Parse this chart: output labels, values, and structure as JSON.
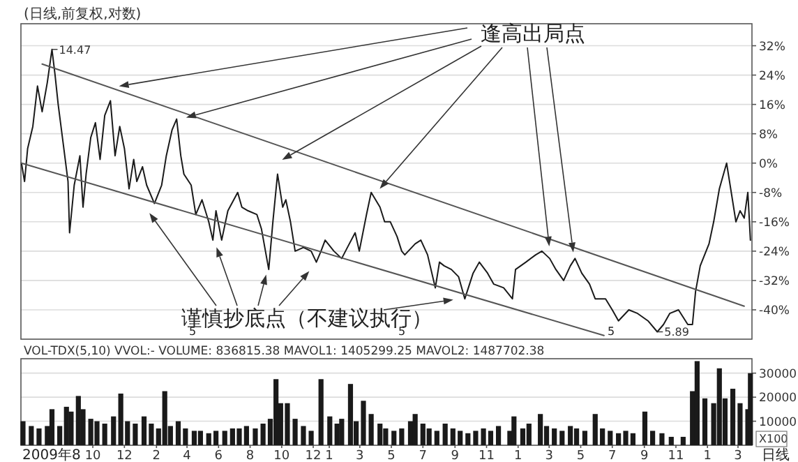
{
  "chart_data": [
    {
      "type": "line",
      "title": "(日线,前复权,对数)",
      "x": [
        "2009-05-16",
        "2009-05-22",
        "2009-05-28",
        "2009-06-07",
        "2009-06-16",
        "2009-06-25",
        "2009-07-05",
        "2009-07-14",
        "2009-07-20",
        "2009-07-26",
        "2009-08-05",
        "2009-08-14",
        "2009-08-17",
        "2009-08-26",
        "2009-09-06",
        "2009-09-12",
        "2009-09-18",
        "2009-09-27",
        "2009-10-06",
        "2009-10-15",
        "2009-10-24",
        "2009-11-04",
        "2009-11-13",
        "2009-11-22",
        "2009-12-01",
        "2009-12-10",
        "2009-12-19",
        "2009-12-25",
        "2010-01-05",
        "2010-01-13",
        "2010-01-28",
        "2010-02-11",
        "2010-02-20",
        "2010-03-03",
        "2010-03-12",
        "2010-03-20",
        "2010-03-26",
        "2010-04-09",
        "2010-04-18",
        "2010-04-30",
        "2010-05-13",
        "2010-05-21",
        "2010-05-27",
        "2010-06-07",
        "2010-06-19",
        "2010-07-08",
        "2010-07-16",
        "2010-07-28",
        "2010-08-14",
        "2010-08-23",
        "2010-09-06",
        "2010-09-14",
        "2010-09-23",
        "2010-10-03",
        "2010-10-09",
        "2010-10-18",
        "2010-10-27",
        "2010-11-12",
        "2010-11-27",
        "2010-12-07",
        "2010-12-16",
        "2010-12-24",
        "2011-01-10",
        "2011-01-25",
        "2011-02-05",
        "2011-02-20",
        "2011-02-28",
        "2011-03-14",
        "2011-03-23",
        "2011-04-09",
        "2011-04-18",
        "2011-04-29",
        "2011-05-12",
        "2011-05-21",
        "2011-05-27",
        "2011-06-16",
        "2011-06-27",
        "2011-07-10",
        "2011-07-25",
        "2011-08-02",
        "2011-08-11",
        "2011-08-25",
        "2011-09-08",
        "2011-09-20",
        "2011-10-06",
        "2011-10-18",
        "2011-11-03",
        "2011-11-15",
        "2011-12-04",
        "2011-12-21",
        "2011-12-27",
        "2012-01-16",
        "2012-02-04",
        "2012-02-16",
        "2012-03-02",
        "2012-03-14",
        "2012-03-29",
        "2012-04-11",
        "2012-04-20",
        "2012-05-03",
        "2012-05-18",
        "2012-05-29",
        "2012-06-18",
        "2012-07-01",
        "2012-07-13",
        "2012-08-02",
        "2012-08-19",
        "2012-09-08",
        "2012-09-26",
        "2012-10-08",
        "2012-10-20",
        "2012-11-06",
        "2012-11-24",
        "2012-12-03",
        "2012-12-09",
        "2012-12-18",
        "2013-01-04",
        "2013-01-13",
        "2013-01-24",
        "2013-02-07",
        "2013-02-16",
        "2013-02-25",
        "2013-03-05",
        "2013-03-13",
        "2013-03-20",
        "2013-03-22",
        "2013-03-25"
      ],
      "series": [
        {
          "color": "#1a1a1a",
          "values": [
            0,
            -5,
            4,
            10,
            21,
            14,
            22,
            31,
            24,
            16,
            5,
            -5,
            -19,
            -6,
            2,
            -12,
            -3,
            7,
            11,
            1,
            13,
            17,
            2,
            10,
            4,
            -7,
            1,
            -5,
            -1,
            -6,
            -11,
            -6,
            2,
            9,
            12,
            2,
            -3,
            -6,
            -14,
            -10,
            -16,
            -21,
            -13,
            -21,
            -13,
            -8,
            -12,
            -13,
            -14,
            -18,
            -29,
            -16,
            -3,
            -12,
            -10,
            -16,
            -24,
            -23,
            -24,
            -27,
            -24,
            -21,
            -24,
            -26,
            -23,
            -19,
            -24,
            -14,
            -8,
            -12,
            -16,
            -16,
            -20,
            -24,
            -25,
            -22,
            -21,
            -25,
            -34,
            -27,
            -28,
            -29,
            -31,
            -37,
            -30,
            -27,
            -30,
            -33,
            -34,
            -37,
            -29,
            -27,
            -25,
            -24,
            -26,
            -29,
            -32,
            -28,
            -26,
            -30,
            -33,
            -37,
            -37,
            -40,
            -43,
            -40,
            -41,
            -43,
            -46,
            -44,
            -41,
            -40,
            -44,
            -44,
            -35,
            -28,
            -22,
            -16,
            -7,
            0,
            -8,
            -16,
            -13,
            -15,
            -8,
            -13,
            -21
          ]
        },
        {
          "type": "line",
          "color": "#555555",
          "x": [
            "2009-06-25",
            "2013-03-13"
          ],
          "values": [
            27,
            -39
          ]
        },
        {
          "type": "line",
          "color": "#555555",
          "x": [
            "2009-05-16",
            "2012-06-15"
          ],
          "values": [
            0,
            -47
          ]
        }
      ],
      "xlim": [
        "2009-05-15",
        "2013-03-28"
      ],
      "ylim": [
        -48,
        38
      ],
      "yticks": [
        {
          "value": 32,
          "label": "32%"
        },
        {
          "value": 24,
          "label": "24%"
        },
        {
          "value": 16,
          "label": "16%"
        },
        {
          "value": 8,
          "label": "8%"
        },
        {
          "value": 0,
          "label": "0%"
        },
        {
          "value": -8,
          "label": "-8%"
        },
        {
          "value": -16,
          "label": "-16%"
        },
        {
          "value": -24,
          "label": "-24%"
        },
        {
          "value": -32,
          "label": "-32%"
        },
        {
          "value": -40,
          "label": "-40%"
        }
      ],
      "grid": "y",
      "tick_labels": "y",
      "annotations": [
        {
          "text": "14.47",
          "x": "2009-07-14",
          "y": 31
        },
        {
          "text": "5.89",
          "x": "2012-09-26",
          "y": -46
        },
        {
          "text": "逢高出局点",
          "x": "2009-11-22",
          "y": 21
        },
        "谨慎抄底点（不建议执行）",
        "5",
        "5",
        "5"
      ]
    },
    {
      "type": "bar",
      "title": "VOL-TDX(5,10) VVOL:- VOLUME: 836815.38 MAVOL1: 1405299.25 MAVOL2: 1487702.38",
      "ylabel": "X100",
      "color": "#1a1a1a",
      "x": [
        "2009-05-19",
        "2009-06-04",
        "2009-06-19",
        "2009-07-05",
        "2009-07-14",
        "2009-07-29",
        "2009-08-11",
        "2009-08-20",
        "2009-09-03",
        "2009-09-12",
        "2009-09-27",
        "2009-10-09",
        "2009-10-24",
        "2009-11-10",
        "2009-11-24",
        "2009-12-07",
        "2009-12-22",
        "2010-01-08",
        "2010-01-22",
        "2010-02-05",
        "2010-02-17",
        "2010-02-28",
        "2010-03-15",
        "2010-03-29",
        "2010-04-15",
        "2010-04-27",
        "2010-05-13",
        "2010-05-27",
        "2010-06-13",
        "2010-06-28",
        "2010-07-11",
        "2010-07-25",
        "2010-08-11",
        "2010-08-26",
        "2010-09-09",
        "2010-09-20",
        "2010-09-29",
        "2010-10-12",
        "2010-10-27",
        "2010-11-12",
        "2010-11-27",
        "2010-12-16",
        "2011-01-02",
        "2011-01-16",
        "2011-01-25",
        "2011-02-11",
        "2011-02-22",
        "2011-03-08",
        "2011-03-23",
        "2011-04-09",
        "2011-04-20",
        "2011-05-06",
        "2011-05-21",
        "2011-06-07",
        "2011-06-16",
        "2011-07-01",
        "2011-07-13",
        "2011-07-28",
        "2011-08-13",
        "2011-08-28",
        "2011-09-11",
        "2011-09-26",
        "2011-10-11",
        "2011-10-26",
        "2011-11-09",
        "2011-11-24",
        "2011-12-16",
        "2011-12-24",
        "2012-01-10",
        "2012-01-22",
        "2012-02-13",
        "2012-02-25",
        "2012-03-11",
        "2012-03-26",
        "2012-04-11",
        "2012-04-23",
        "2012-05-09",
        "2012-05-29",
        "2012-06-12",
        "2012-06-27",
        "2012-07-13",
        "2012-07-27",
        "2012-08-10",
        "2012-09-02",
        "2012-09-17",
        "2012-10-05",
        "2012-10-23",
        "2012-11-15",
        "2012-12-03",
        "2012-12-12",
        "2012-12-27",
        "2013-01-13",
        "2013-01-24",
        "2013-02-04",
        "2013-02-19",
        "2013-03-05",
        "2013-03-20",
        "2013-03-25"
      ],
      "values": [
        10000,
        8000,
        7000,
        8000,
        15000,
        8000,
        16000,
        14000,
        20500,
        15000,
        11000,
        10000,
        9000,
        12000,
        21500,
        10000,
        9000,
        12000,
        9000,
        7000,
        22500,
        8000,
        10000,
        7000,
        6000,
        6000,
        5000,
        6000,
        6000,
        7000,
        7000,
        8000,
        7000,
        9000,
        11000,
        27500,
        17500,
        17500,
        11000,
        8000,
        6000,
        27500,
        12000,
        9000,
        11000,
        25500,
        10000,
        18500,
        13000,
        9000,
        7000,
        6000,
        7000,
        10000,
        13000,
        9000,
        7000,
        6000,
        9000,
        7000,
        6000,
        5000,
        6000,
        7000,
        6000,
        8000,
        6000,
        12000,
        7000,
        9000,
        13000,
        8000,
        7000,
        6000,
        8000,
        7000,
        6000,
        13000,
        7000,
        6000,
        5000,
        6000,
        5000,
        14000,
        6000,
        5000,
        3500,
        3500,
        22500,
        35000,
        19500,
        17500,
        32000,
        19500,
        23500,
        17500,
        15000,
        30000
      ],
      "xlim": [
        "2009-05-15",
        "2013-03-28"
      ],
      "ylim": [
        0,
        36000
      ],
      "yticks": [
        10000,
        20000,
        30000
      ],
      "xticks": [
        {
          "value": "2009-10",
          "label": "10"
        },
        {
          "value": "2009-12",
          "label": "12"
        },
        {
          "value": "2010-02",
          "label": "2"
        },
        {
          "value": "2010-04",
          "label": "4"
        },
        {
          "value": "2010-06",
          "label": "6"
        },
        {
          "value": "2010-08",
          "label": "8"
        },
        {
          "value": "2010-10",
          "label": "10"
        },
        {
          "value": "2010-12",
          "label": "12"
        },
        {
          "value": "2011-01",
          "label": "1"
        },
        {
          "value": "2011-03",
          "label": "3"
        },
        {
          "value": "2011-05",
          "label": "5"
        },
        {
          "value": "2011-07",
          "label": "7"
        },
        {
          "value": "2011-09",
          "label": "9"
        },
        {
          "value": "2011-11",
          "label": "11"
        },
        {
          "value": "2012-01",
          "label": "1"
        },
        {
          "value": "2012-03",
          "label": "3"
        },
        {
          "value": "2012-05",
          "label": "5"
        },
        {
          "value": "2012-07",
          "label": "7"
        },
        {
          "value": "2012-09",
          "label": "9"
        },
        {
          "value": "2012-11",
          "label": "11"
        },
        {
          "value": "2013-01",
          "label": "1"
        },
        {
          "value": "2013-03",
          "label": "3"
        }
      ],
      "grid": "y",
      "annotations": [
        "日线",
        "2009年8"
      ]
    }
  ]
}
